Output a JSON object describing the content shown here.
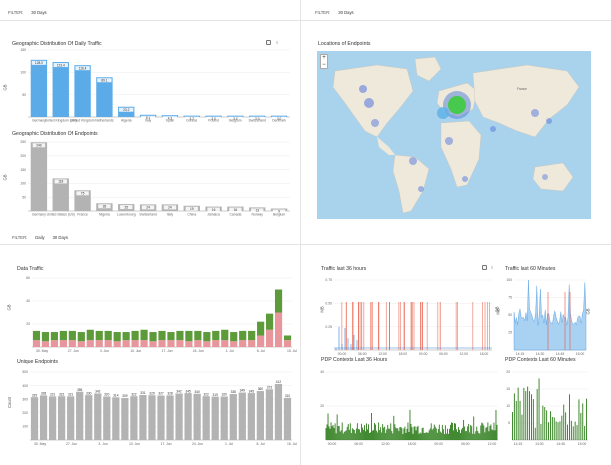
{
  "filters": {
    "top_left": {
      "label": "FILTER:",
      "value": "30 Days"
    },
    "top_right": {
      "label": "FILTER:",
      "value": "30 Days"
    },
    "bottom_left": {
      "label": "FILTER:",
      "value1": "Daily",
      "value2": "30 Days"
    }
  },
  "panels": {
    "geo_traffic": {
      "title": "Geographic Distribution Of Daily Traffic",
      "ylabel": "GB"
    },
    "geo_endpoints": {
      "title": "Geographic Distribution Of Endpoints",
      "ylabel": "GB"
    },
    "map": {
      "title": "Locations of Endpoints",
      "zoom_in": "+",
      "zoom_out": "−",
      "country_label": "France"
    },
    "data_traffic": {
      "title": "Data Traffic",
      "ylabel": "GB"
    },
    "unique_endpoints": {
      "title": "Unique Endpoints",
      "ylabel": "Count"
    },
    "traffic36": {
      "title": "Traffic last 36 hours",
      "ylabel": "MB",
      "ylabel2": "GB"
    },
    "traffic60": {
      "title": "Traffic last 60 Minutes",
      "ylabel": "MB",
      "ylabel2": "GB"
    },
    "pdp36": {
      "title": "PDP Contexts Last 36 Hours"
    },
    "pdp60": {
      "title": "PDP Contexts Last 60 Minutes"
    }
  },
  "colors": {
    "blue": "#5aabe8",
    "gray": "#b3b3b3",
    "green": "#5d9a3a",
    "pink": "#e8969b",
    "red": "#e8553f",
    "lightblue": "#a9d1f2",
    "darkgreen": "#2e7d1c"
  },
  "chart_data": [
    {
      "type": "bar",
      "name": "geo_traffic",
      "ylim": [
        0,
        150
      ],
      "yticks": [
        "150",
        "100",
        "50"
      ],
      "categories": [
        "Germany",
        "United Kingdom (UK)",
        "United Kingdom",
        "Netherlands",
        "Algeria",
        "Italy",
        "Spain",
        "Greece",
        "Poland",
        "Belgium",
        "Switzerland",
        "Denmark"
      ],
      "values": [
        128,
        123,
        116,
        89,
        23,
        5,
        4,
        3,
        3,
        3,
        3,
        3
      ],
      "labels": [
        "128.0",
        "123.4",
        "116.4",
        "89.1",
        "23.2",
        "5.1",
        "4.3",
        "3.2",
        "3.0",
        "3.0",
        "3.0",
        "3.0"
      ]
    },
    {
      "type": "bar",
      "name": "geo_endpoints",
      "ylim": [
        0,
        250
      ],
      "yticks": [
        "250",
        "200",
        "150",
        "100",
        "50"
      ],
      "categories": [
        "Germany",
        "United States (US)",
        "France",
        "Nigeria",
        "Luxembourg",
        "Switzerland",
        "Italy",
        "China",
        "Jamaica",
        "Canada",
        "Norway",
        "Belgium"
      ],
      "values": [
        249,
        118,
        75,
        28,
        25,
        24,
        24,
        19,
        16,
        16,
        13,
        9
      ],
      "labels": [
        "249",
        "118",
        "75",
        "28",
        "25",
        "24",
        "24",
        "19",
        "16",
        "16",
        "13",
        "9"
      ]
    },
    {
      "type": "bar",
      "name": "data_traffic",
      "stacked": true,
      "ylim": [
        0,
        60
      ],
      "yticks": [
        "60",
        "40",
        "20"
      ],
      "xticklabels": [
        "30. May",
        "27. Jun",
        "3. Jun",
        "10. Jun",
        "17. Jun",
        "24. Jun",
        "1. Jul",
        "8. Jul",
        "15. Jul"
      ],
      "series": [
        {
          "values": [
            6,
            5,
            6,
            6,
            6,
            5,
            6,
            6,
            6,
            5,
            6,
            6,
            6,
            5,
            6,
            6,
            6,
            5,
            6,
            5,
            6,
            6,
            5,
            6,
            6,
            10,
            15,
            30,
            6
          ]
        },
        {
          "values": [
            8,
            8,
            7,
            8,
            8,
            8,
            9,
            8,
            8,
            8,
            7,
            8,
            9,
            8,
            8,
            7,
            8,
            9,
            8,
            8,
            8,
            9,
            8,
            8,
            8,
            12,
            14,
            20,
            4
          ]
        }
      ]
    },
    {
      "type": "bar",
      "name": "unique_endpoints",
      "ylim": [
        0,
        500
      ],
      "yticks": [
        "500",
        "400",
        "300",
        "200",
        "100"
      ],
      "xticklabels": [
        "30. May",
        "27. Jun",
        "3. Jun",
        "10. Jun",
        "17. Jun",
        "24. Jun",
        "1. Jul",
        "8. Jul",
        "15. Jul"
      ],
      "values": [
        315,
        328,
        321,
        322,
        321,
        355,
        330,
        342,
        320,
        314,
        309,
        322,
        331,
        329,
        327,
        328,
        342,
        345,
        340,
        322,
        319,
        320,
        338,
        349,
        345,
        360,
        373,
        412,
        310
      ],
      "labels": [
        "315",
        "328",
        "321",
        "322",
        "321",
        "355",
        "330",
        "342",
        "320",
        "314",
        "309",
        "322",
        "331",
        "329",
        "327",
        "328",
        "342",
        "345",
        "340",
        "322",
        "319",
        "320",
        "338",
        "349",
        "345",
        "360",
        "373",
        "412",
        "310"
      ]
    },
    {
      "type": "line",
      "name": "traffic36",
      "yticks": [
        "0.75",
        "0.50",
        "0.25"
      ],
      "xticklabels": [
        "00:00",
        "06:00",
        "12:00",
        "18:00",
        "00:00",
        "06:00",
        "12:00",
        "18:00"
      ]
    },
    {
      "type": "area",
      "name": "traffic60",
      "yticks": [
        "100",
        "75",
        "50",
        "25"
      ],
      "xticklabels": [
        "14:15",
        "14:30",
        "14:45",
        "15:00"
      ]
    },
    {
      "type": "bar",
      "name": "pdp36",
      "yticks": [
        "40",
        "20"
      ],
      "xticklabels": [
        "00:00",
        "06:00",
        "12:00",
        "18:00",
        "00:00",
        "06:00",
        "12:00"
      ]
    },
    {
      "type": "bar",
      "name": "pdp60",
      "yticks": [
        "20",
        "15",
        "10",
        "5"
      ],
      "xticklabels": [
        "14:15",
        "14:30",
        "14:45",
        "15:00"
      ]
    }
  ]
}
